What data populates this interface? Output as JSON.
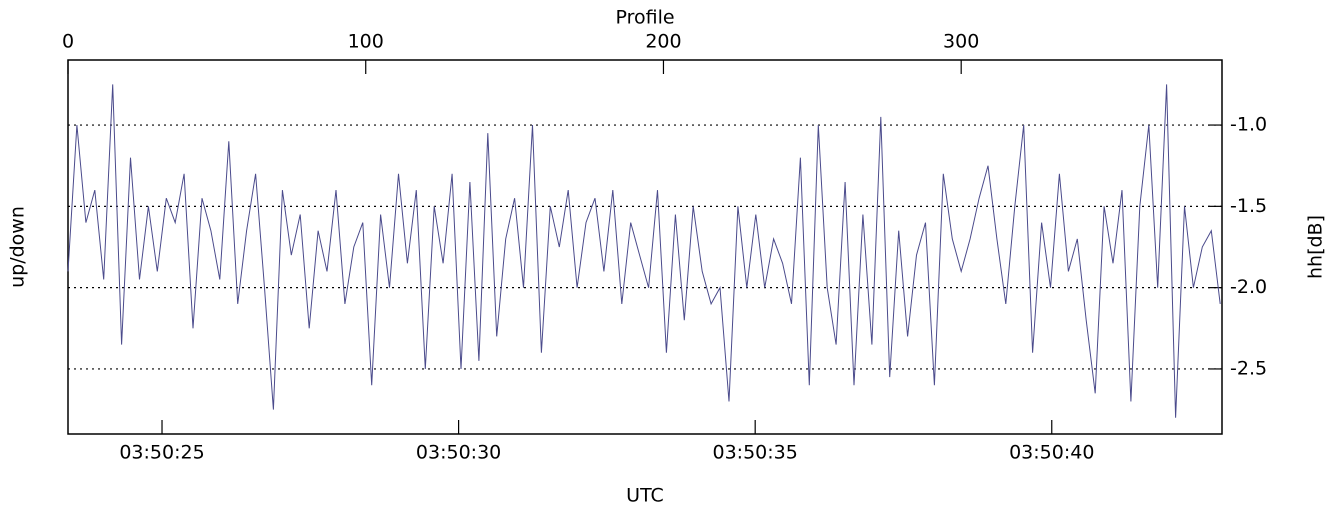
{
  "chart_data": {
    "type": "line",
    "x_label": "Profile",
    "x2_label": "UTC",
    "y_label": "up/down",
    "y_label_right": "hh[dB]",
    "xlim": [
      0,
      387.6
    ],
    "xticks": [
      0,
      100,
      200,
      300
    ],
    "x2lim": [
      23.415,
      42.87
    ],
    "x2ticks": [
      {
        "value": 25,
        "label": "03:50:25"
      },
      {
        "value": 30,
        "label": "03:50:30"
      },
      {
        "value": 35,
        "label": "03:50:35"
      },
      {
        "value": 40,
        "label": "03:50:40"
      }
    ],
    "ylim": [
      -2.9,
      -0.6
    ],
    "yticks": [
      {
        "value": -1.0,
        "label": "-1.0"
      },
      {
        "value": -1.5,
        "label": "-1.5"
      },
      {
        "value": -2.0,
        "label": "-2.0"
      },
      {
        "value": -2.5,
        "label": "-2.5"
      }
    ],
    "grid": true,
    "series": [
      {
        "color": "#4b4b8c",
        "x": [
          0,
          3,
          6,
          9,
          12,
          15,
          18,
          21,
          24,
          27,
          30,
          33,
          36,
          39,
          42,
          45,
          48,
          51,
          54,
          57,
          60,
          63,
          66,
          69,
          72,
          75,
          78,
          81,
          84,
          87,
          90,
          93,
          96,
          99,
          102,
          105,
          108,
          111,
          114,
          117,
          120,
          123,
          126,
          129,
          132,
          135,
          138,
          141,
          144,
          147,
          150,
          153,
          156,
          159,
          162,
          165,
          168,
          171,
          174,
          177,
          180,
          183,
          186,
          189,
          192,
          195,
          198,
          201,
          204,
          207,
          210,
          213,
          216,
          219,
          222,
          225,
          228,
          231,
          234,
          237,
          240,
          243,
          246,
          249,
          252,
          255,
          258,
          261,
          264,
          267,
          270,
          273,
          276,
          279,
          282,
          285,
          288,
          291,
          294,
          297,
          300,
          303,
          306,
          309,
          312,
          315,
          318,
          321,
          324,
          327,
          330,
          333,
          336,
          339,
          342,
          345,
          348,
          351,
          354,
          357,
          360,
          363,
          366,
          369,
          372,
          375,
          378,
          381,
          384,
          387
        ],
        "values": [
          -1.9,
          -1.0,
          -1.6,
          -1.4,
          -1.95,
          -0.75,
          -2.35,
          -1.2,
          -1.95,
          -1.5,
          -1.9,
          -1.45,
          -1.6,
          -1.3,
          -2.25,
          -1.45,
          -1.65,
          -1.95,
          -1.1,
          -2.1,
          -1.65,
          -1.3,
          -2.0,
          -2.75,
          -1.4,
          -1.8,
          -1.55,
          -2.25,
          -1.65,
          -1.9,
          -1.4,
          -2.1,
          -1.75,
          -1.6,
          -2.6,
          -1.55,
          -2.0,
          -1.3,
          -1.85,
          -1.4,
          -2.5,
          -1.5,
          -1.85,
          -1.3,
          -2.5,
          -1.35,
          -2.45,
          -1.05,
          -2.3,
          -1.7,
          -1.45,
          -2.0,
          -1.0,
          -2.4,
          -1.5,
          -1.75,
          -1.4,
          -2.0,
          -1.6,
          -1.45,
          -1.9,
          -1.4,
          -2.1,
          -1.6,
          -1.8,
          -2.0,
          -1.4,
          -2.4,
          -1.55,
          -2.2,
          -1.5,
          -1.9,
          -2.1,
          -2.0,
          -2.7,
          -1.5,
          -2.0,
          -1.55,
          -2.0,
          -1.7,
          -1.85,
          -2.1,
          -1.2,
          -2.6,
          -1.0,
          -2.0,
          -2.35,
          -1.35,
          -2.6,
          -1.55,
          -2.35,
          -0.95,
          -2.55,
          -1.65,
          -2.3,
          -1.8,
          -1.6,
          -2.6,
          -1.3,
          -1.7,
          -1.9,
          -1.7,
          -1.45,
          -1.25,
          -1.7,
          -2.1,
          -1.5,
          -1.0,
          -2.4,
          -1.6,
          -2.0,
          -1.3,
          -1.9,
          -1.7,
          -2.2,
          -2.65,
          -1.5,
          -1.85,
          -1.4,
          -2.7,
          -1.5,
          -1.0,
          -2.0,
          -0.75,
          -2.8,
          -1.5,
          -2.0,
          -1.75,
          -1.65,
          -2.1
        ]
      }
    ]
  }
}
